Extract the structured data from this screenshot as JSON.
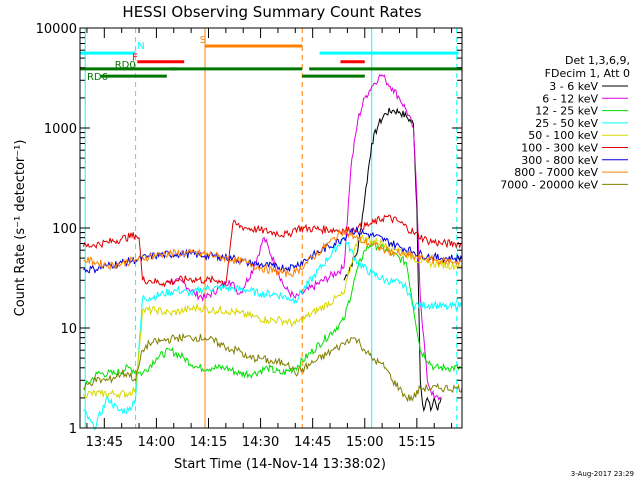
{
  "chart_data": {
    "type": "line",
    "title": "HESSI Observing Summary Count Rates",
    "xlabel": "Start Time (14-Nov-14 13:38:02)",
    "ylabel": "Count Rate (s⁻¹ detector⁻¹)",
    "yscale": "log",
    "ylim": [
      1,
      10000
    ],
    "xlim_minutes": [
      0,
      110
    ],
    "x_tick_labels": [
      "13:45",
      "14:00",
      "14:15",
      "14:30",
      "14:45",
      "15:00",
      "15:15"
    ],
    "y_tick_labels": [
      "1",
      "10",
      "100",
      "1000",
      "10000"
    ],
    "legend_header": [
      "Det 1,3,6,9,",
      "FDecim 1, Att 0"
    ],
    "legend_position": "right",
    "series": [
      {
        "name": "3 - 6 keV",
        "color": "#000000",
        "x": [
          76,
          80,
          82,
          84,
          86,
          88,
          90,
          92,
          94,
          96,
          97,
          98,
          99,
          100,
          101,
          102,
          103,
          104
        ],
        "y": [
          30,
          60,
          200,
          700,
          1100,
          1400,
          1500,
          1450,
          1300,
          1100,
          150,
          3,
          1.5,
          2,
          1.5,
          2,
          1.5,
          2
        ]
      },
      {
        "name": "6 - 12 keV",
        "color": "#e000e0",
        "x": [
          25,
          30,
          33,
          36,
          40,
          43,
          46,
          50,
          53,
          56,
          59,
          62,
          76,
          78,
          80,
          82,
          84,
          86,
          87,
          88,
          90,
          92,
          94,
          96,
          97,
          98,
          100,
          102,
          104
        ],
        "y": [
          30,
          28,
          22,
          20,
          25,
          30,
          22,
          40,
          80,
          45,
          25,
          20,
          40,
          400,
          1200,
          2000,
          2600,
          3200,
          3400,
          3000,
          2500,
          2000,
          1500,
          1000,
          200,
          20,
          3,
          2,
          2
        ]
      },
      {
        "name": "12 - 25 keV",
        "color": "#00e000",
        "x": [
          1,
          5,
          10,
          14,
          18,
          22,
          26,
          30,
          34,
          38,
          42,
          46,
          50,
          54,
          58,
          62,
          76,
          80,
          82,
          84,
          86,
          90,
          94,
          98,
          102,
          106,
          110
        ],
        "y": [
          2.5,
          3.5,
          3.5,
          4,
          3.5,
          5,
          6,
          5,
          4,
          4,
          4,
          3.5,
          3.5,
          4,
          3.5,
          4,
          12,
          40,
          60,
          70,
          65,
          55,
          45,
          6,
          4,
          4,
          4
        ]
      },
      {
        "name": "25 - 50 keV",
        "color": "#00ffff",
        "x": [
          1,
          4,
          8,
          11,
          14,
          16,
          18,
          20,
          24,
          28,
          32,
          36,
          40,
          44,
          48,
          52,
          56,
          60,
          62,
          76,
          80,
          84,
          88,
          92,
          94,
          96,
          98,
          102,
          106,
          110
        ],
        "y": [
          1.5,
          1,
          2,
          1.5,
          1.5,
          2,
          20,
          20,
          22,
          24,
          22,
          25,
          25,
          25,
          24,
          22,
          22,
          20,
          19,
          80,
          45,
          35,
          30,
          28,
          25,
          17,
          17,
          17,
          16,
          17
        ]
      },
      {
        "name": "50 - 100 keV",
        "color": "#d8d800",
        "x": [
          1,
          6,
          10,
          14,
          16,
          18,
          22,
          26,
          30,
          34,
          38,
          42,
          46,
          50,
          54,
          58,
          62,
          76,
          80,
          84,
          88,
          92,
          96,
          100,
          104,
          108,
          110
        ],
        "y": [
          2.2,
          2.2,
          2.2,
          2.2,
          2.5,
          15,
          15,
          14,
          15,
          16,
          15,
          15,
          14,
          13,
          12,
          12,
          11,
          22,
          80,
          75,
          70,
          60,
          50,
          45,
          43,
          42,
          43
        ]
      },
      {
        "name": "100 - 300 keV",
        "color": "#e00000",
        "x": [
          1,
          4,
          8,
          12,
          16,
          17,
          18,
          20,
          24,
          28,
          32,
          36,
          40,
          42,
          44,
          48,
          52,
          56,
          60,
          62,
          76,
          78,
          80,
          84,
          88,
          92,
          96,
          100,
          104,
          108,
          110
        ],
        "y": [
          65,
          68,
          72,
          78,
          85,
          80,
          30,
          30,
          28,
          30,
          31,
          30,
          30,
          28,
          110,
          100,
          95,
          90,
          85,
          100,
          95,
          95,
          100,
          110,
          130,
          115,
          90,
          75,
          70,
          70,
          70
        ]
      },
      {
        "name": "300 - 800 keV",
        "color": "#0000e0",
        "x": [
          1,
          4,
          8,
          12,
          16,
          20,
          24,
          28,
          32,
          36,
          40,
          44,
          48,
          52,
          56,
          60,
          62,
          76,
          78,
          80,
          82,
          84,
          88,
          92,
          96,
          100,
          104,
          108,
          110
        ],
        "y": [
          38,
          39,
          42,
          45,
          48,
          52,
          54,
          55,
          55,
          53,
          52,
          50,
          45,
          43,
          41,
          40,
          42,
          80,
          95,
          92,
          88,
          85,
          75,
          65,
          58,
          52,
          50,
          50,
          50
        ]
      },
      {
        "name": "800 - 7000 keV",
        "color": "#ff8000",
        "x": [
          1,
          4,
          8,
          12,
          16,
          20,
          24,
          28,
          32,
          36,
          40,
          44,
          48,
          52,
          56,
          60,
          62,
          76,
          78,
          80,
          82,
          84,
          88,
          92,
          96,
          100,
          104,
          108,
          110
        ],
        "y": [
          48,
          46,
          42,
          44,
          48,
          52,
          55,
          56,
          56,
          55,
          52,
          48,
          45,
          40,
          37,
          35,
          36,
          95,
          85,
          78,
          72,
          68,
          60,
          55,
          52,
          49,
          47,
          46,
          46
        ]
      },
      {
        "name": "7000 - 20000 keV",
        "color": "#808000",
        "x": [
          1,
          4,
          8,
          12,
          14,
          16,
          18,
          20,
          24,
          28,
          32,
          36,
          40,
          44,
          46,
          48,
          52,
          56,
          60,
          62,
          76,
          78,
          80,
          82,
          84,
          86,
          88,
          90,
          92,
          94,
          96,
          98,
          100,
          104,
          108,
          110
        ],
        "y": [
          2.5,
          3,
          3,
          3.5,
          3.5,
          3,
          6,
          7,
          7.5,
          8,
          8,
          8,
          7,
          6,
          6,
          5,
          5,
          4.5,
          4.5,
          3.5,
          7,
          8,
          7.5,
          6,
          5,
          4.5,
          4,
          3,
          2.5,
          2,
          2,
          2.5,
          2.5,
          2.5,
          2.5,
          2.5
        ]
      }
    ],
    "state_bars": [
      {
        "label": "N",
        "color": "#00ffff",
        "y": 5600,
        "segments": [
          [
            0,
            16
          ],
          [
            69,
            109
          ]
        ]
      },
      {
        "label": "F",
        "color": "#ff0000",
        "y": 4600,
        "segments": [
          [
            16.5,
            30
          ],
          [
            75,
            82
          ]
        ]
      },
      {
        "label": "S",
        "color": "#ff8000",
        "y": 6600,
        "segments": [
          [
            36,
            64
          ]
        ]
      },
      {
        "label": "RD0",
        "color": "#007800",
        "y": 3900,
        "segments": [
          [
            0,
            28
          ],
          [
            26,
            64
          ],
          [
            66,
            110
          ]
        ]
      },
      {
        "label": "RD6",
        "color": "#007800",
        "y": 3300,
        "segments": [
          [
            6,
            25
          ],
          [
            64,
            82
          ]
        ]
      }
    ],
    "vertical_lines": [
      {
        "x": 1.5,
        "color": "#00ffff",
        "style": "solid"
      },
      {
        "x": 16,
        "color": "#00ffff",
        "style": "dashed"
      },
      {
        "x": 36,
        "color": "#ff8000",
        "style": "solid"
      },
      {
        "x": 64,
        "color": "#ff8000",
        "style": "dashed"
      },
      {
        "x": 84,
        "color": "#00ffff",
        "style": "solid"
      },
      {
        "x": 108.5,
        "color": "#00ffff",
        "style": "dashed"
      }
    ]
  },
  "footer": {
    "timestamp": "3-Aug-2017 23:29"
  }
}
